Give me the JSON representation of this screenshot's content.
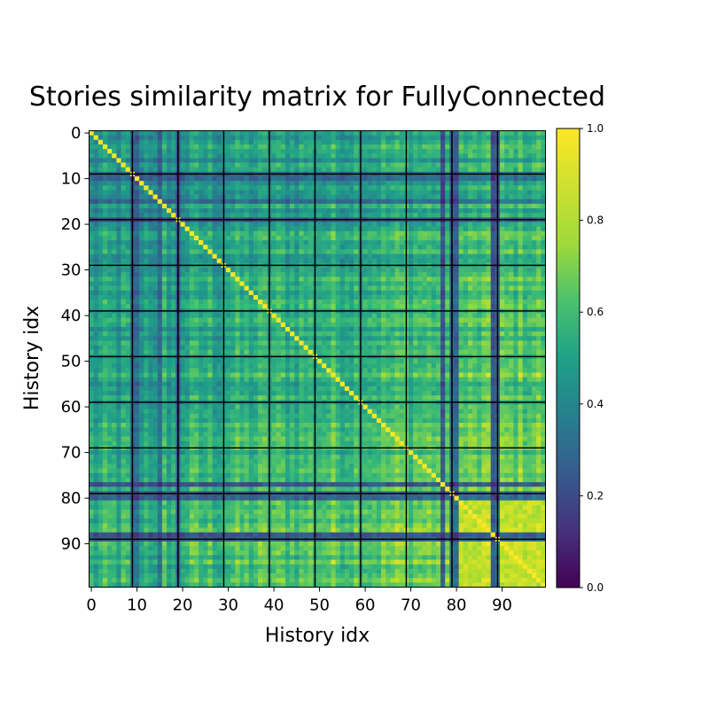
{
  "chart_data": {
    "type": "heatmap",
    "title": "Stories similarity matrix for FullyConnected",
    "xlabel": "History idx",
    "ylabel": "History idx",
    "size": 100,
    "x_ticks": [
      "0",
      "10",
      "20",
      "30",
      "40",
      "50",
      "60",
      "70",
      "80",
      "90"
    ],
    "y_ticks": [
      "0",
      "10",
      "20",
      "30",
      "40",
      "50",
      "60",
      "70",
      "80",
      "90"
    ],
    "colorbar": {
      "range": [
        0.0,
        1.0
      ],
      "ticks": [
        "0.0",
        "0.2",
        "0.4",
        "0.6",
        "0.8",
        "1.0"
      ],
      "colormap": "viridis"
    },
    "diagonal_value": 1.0,
    "gridlines_every": 10,
    "gridline_color": "#000000",
    "low_similarity_indices": [
      9,
      10,
      15,
      19,
      77,
      79,
      80,
      88,
      89
    ],
    "high_similarity_region": [
      80,
      99
    ]
  }
}
